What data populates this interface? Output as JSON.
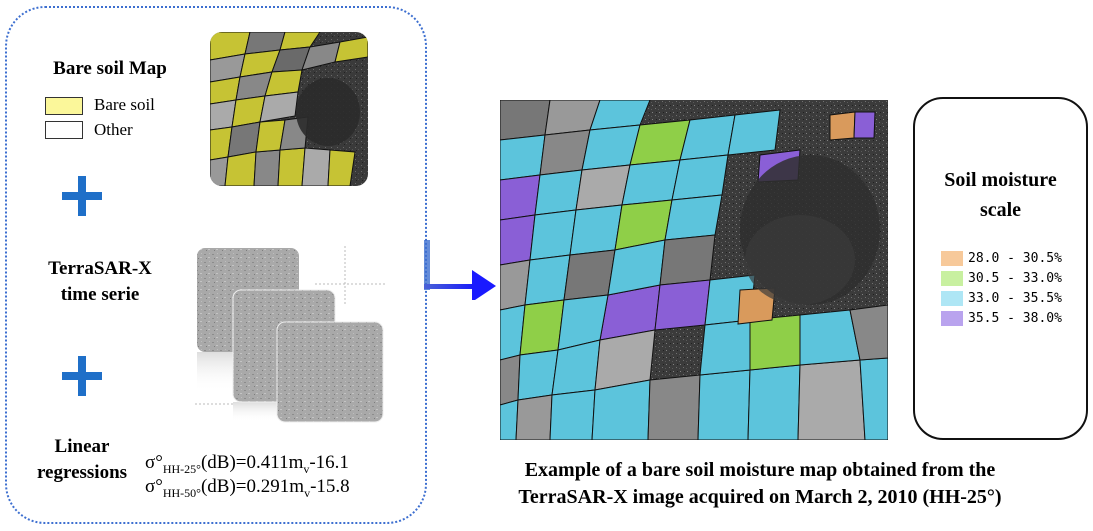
{
  "left": {
    "bare_soil_title": "Bare soil Map",
    "legend": [
      {
        "label": "Bare soil",
        "color": "#fbf79a"
      },
      {
        "label": "Other",
        "color": "#ffffff"
      }
    ],
    "plus_symbol": "+",
    "terrasar_title_line1": "TerraSAR-X",
    "terrasar_title_line2": "time serie",
    "linear_title_line1": "Linear",
    "linear_title_line2": "regressions",
    "formula1": {
      "prefix": "σ°",
      "sub": "HH-25°",
      "mid": "(dB)=0.411m",
      "sub2": "v",
      "suffix": "-16.1"
    },
    "formula2": {
      "prefix": "σ°",
      "sub": "HH-50°",
      "mid": "(dB)=0.291m",
      "sub2": "v",
      "suffix": "-15.8"
    }
  },
  "scale": {
    "title_line1": "Soil moisture",
    "title_line2": "scale",
    "items": [
      {
        "label": "28.0 - 30.5%",
        "color": "#f7c99a"
      },
      {
        "label": "30.5 - 33.0%",
        "color": "#c8f0a0"
      },
      {
        "label": "33.0 - 35.5%",
        "color": "#aee6f5"
      },
      {
        "label": "35.5 - 38.0%",
        "color": "#b9a3ee"
      }
    ]
  },
  "caption": {
    "line1": "Example of a bare soil moisture map obtained from the",
    "line2": "TerraSAR-X image acquired on March 2, 2010 (HH-25°)"
  },
  "colors": {
    "panel_border": "#3d6fd0",
    "plus": "#1f6fc8",
    "arrow": "#1a1aff",
    "bare_soil_field": "#c6c334",
    "moisture_orange": "#d99a5c",
    "moisture_green": "#8fcf48",
    "moisture_cyan": "#5cc4dc",
    "moisture_purple": "#8a5fd6"
  }
}
